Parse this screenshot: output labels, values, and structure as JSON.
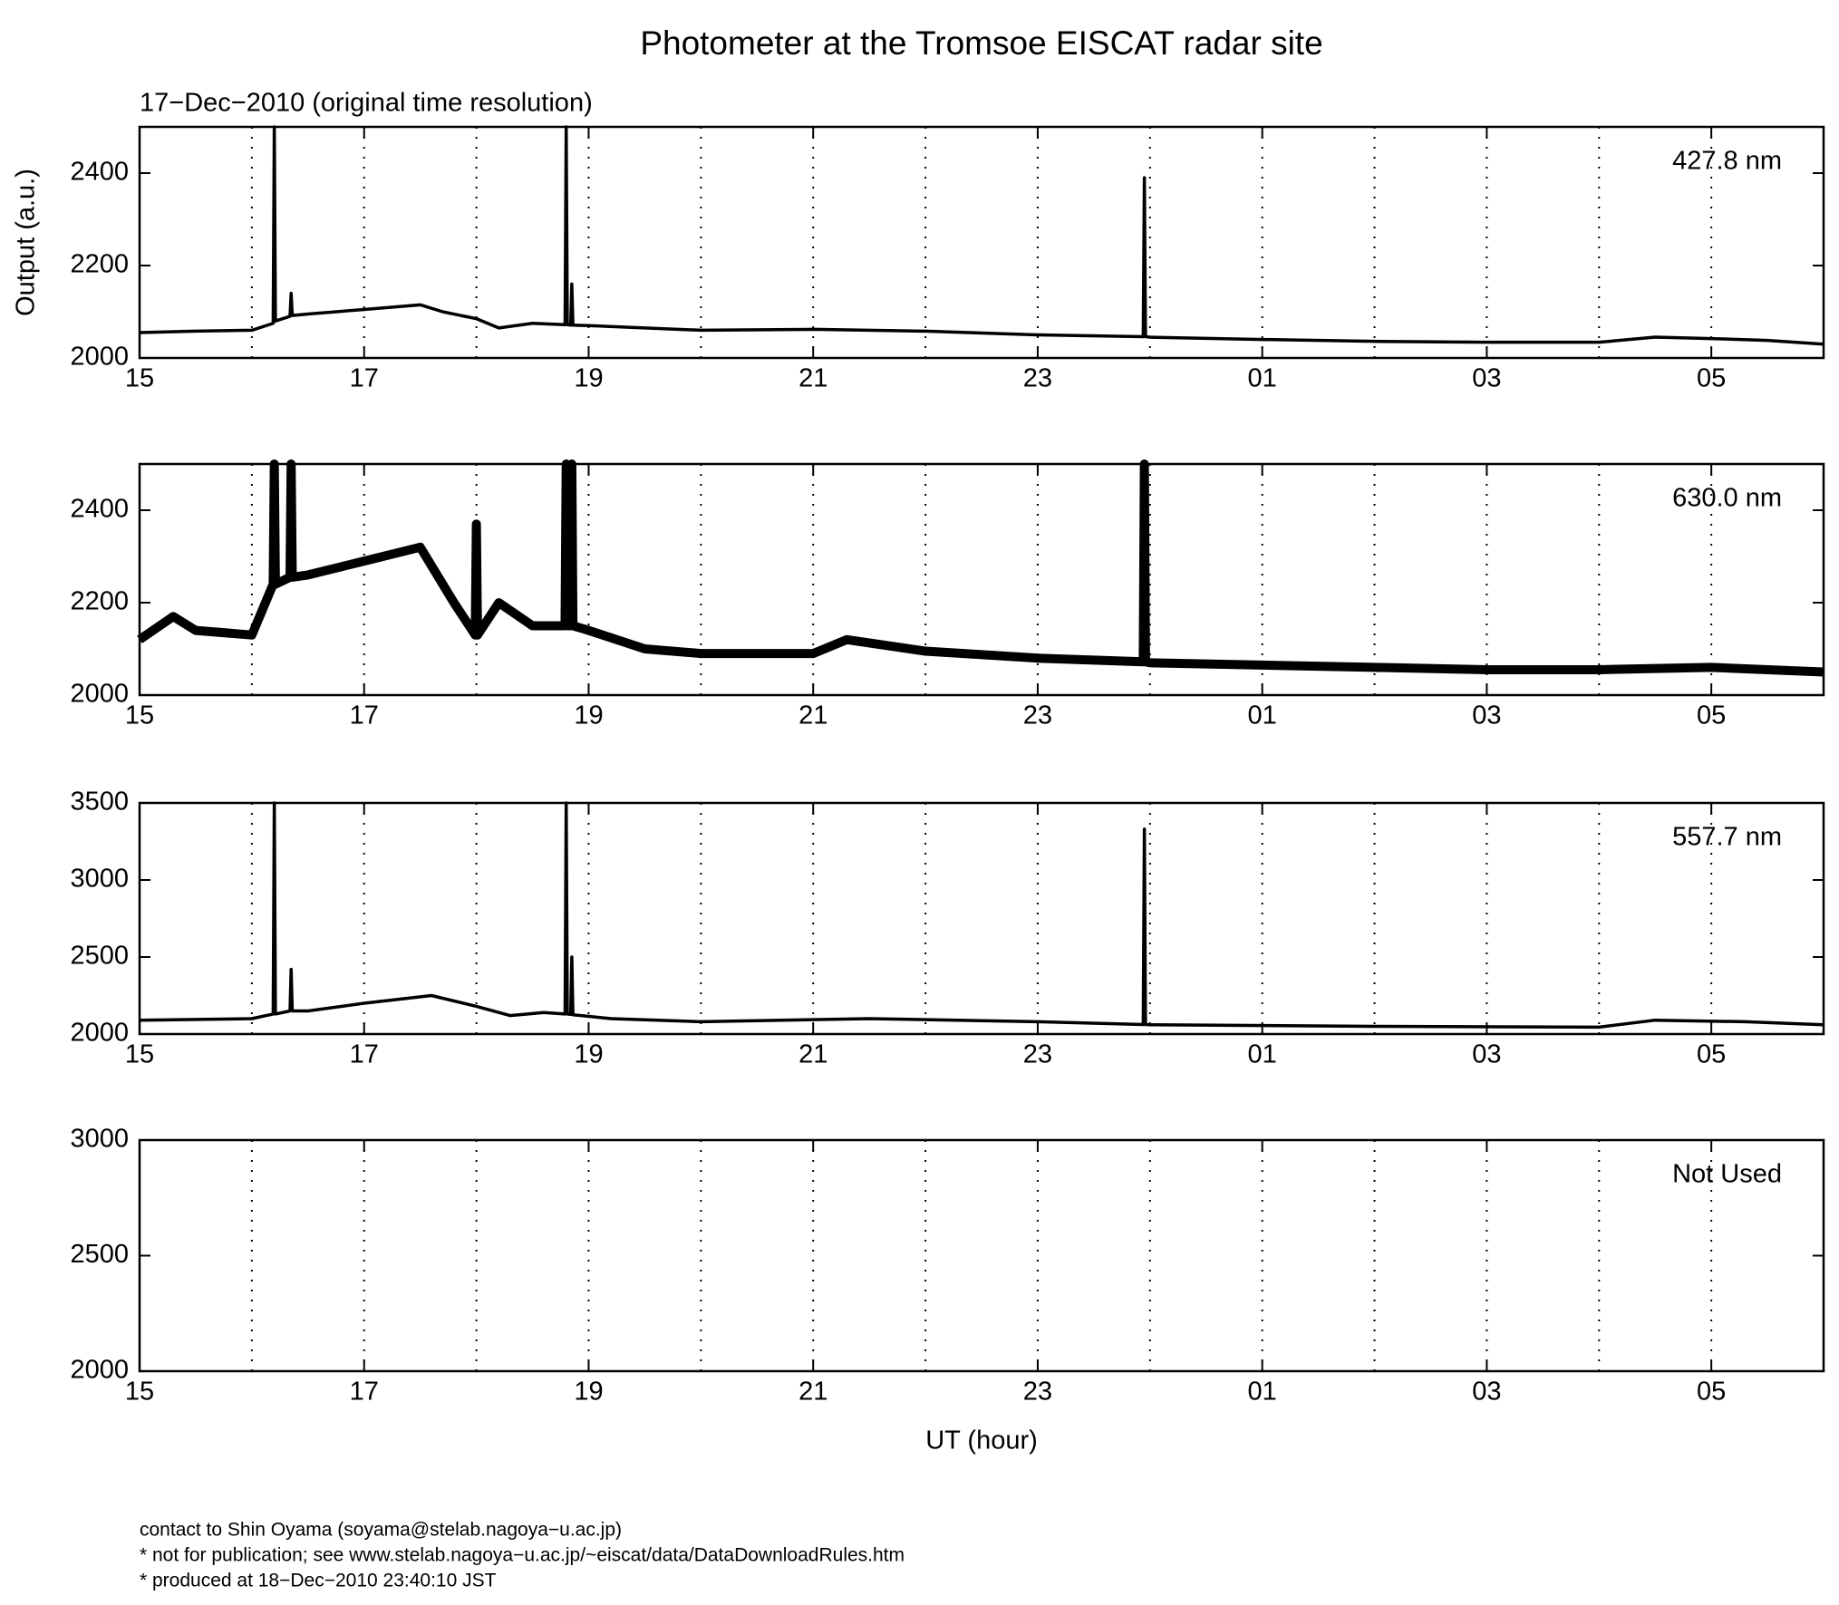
{
  "title": "Photometer at the Tromsoe EISCAT radar site",
  "subtitle": "17−Dec−2010 (original time resolution)",
  "footer": [
    "contact to Shin Oyama (soyama@stelab.nagoya−u.ac.jp)",
    "* not for publication; see www.stelab.nagoya−u.ac.jp/~eiscat/data/DataDownloadRules.htm",
    "* produced at 18−Dec−2010 23:40:10 JST"
  ],
  "chart_data": [
    {
      "type": "line",
      "label": "427.8 nm",
      "ylabel": "Output (a.u.)",
      "xlim": [
        15,
        30
      ],
      "xticks": [
        15,
        17,
        19,
        21,
        23,
        {
          "value": 25,
          "label": "01"
        },
        {
          "value": 27,
          "label": "03"
        },
        {
          "value": 29,
          "label": "05"
        }
      ],
      "xminorticks": [
        16,
        18,
        20,
        22,
        24,
        26,
        28
      ],
      "ylim": [
        2000,
        2500
      ],
      "yticks": [
        2000,
        2200,
        2400
      ],
      "grid": "dotted",
      "series": [
        {
          "color": "#000000",
          "x": [
            15,
            15.5,
            16,
            16.19,
            16.2,
            16.21,
            16.34,
            16.35,
            16.36,
            16.5,
            17,
            17.5,
            17.7,
            18,
            18.2,
            18.5,
            18.79,
            18.8,
            18.81,
            18.84,
            18.85,
            18.86,
            19,
            19.5,
            20,
            21,
            22,
            23,
            23.94,
            23.95,
            23.96,
            24,
            25,
            26,
            27,
            28,
            28.5,
            29,
            29.5,
            30
          ],
          "values": [
            2055,
            2058,
            2060,
            2075,
            2500,
            2080,
            2090,
            2140,
            2092,
            2095,
            2105,
            2115,
            2100,
            2085,
            2065,
            2075,
            2072,
            2500,
            2072,
            2071,
            2160,
            2071,
            2070,
            2065,
            2060,
            2062,
            2058,
            2050,
            2046,
            2390,
            2046,
            2045,
            2040,
            2036,
            2034,
            2034,
            2045,
            2042,
            2038,
            2030
          ]
        }
      ]
    },
    {
      "type": "line",
      "label": "630.0 nm",
      "xlim": [
        15,
        30
      ],
      "xticks": [
        15,
        17,
        19,
        21,
        23,
        {
          "value": 25,
          "label": "01"
        },
        {
          "value": 27,
          "label": "03"
        },
        {
          "value": 29,
          "label": "05"
        }
      ],
      "xminorticks": [
        16,
        18,
        20,
        22,
        24,
        26,
        28
      ],
      "ylim": [
        2000,
        2500
      ],
      "yticks": [
        2000,
        2200,
        2400
      ],
      "grid": "dotted",
      "series": [
        {
          "color": "#000000",
          "x": [
            15,
            15.3,
            15.5,
            16,
            16.19,
            16.2,
            16.21,
            16.34,
            16.35,
            16.36,
            16.5,
            17,
            17.5,
            17.8,
            17.99,
            18,
            18.01,
            18.2,
            18.5,
            18.79,
            18.8,
            18.81,
            18.84,
            18.85,
            18.86,
            19,
            19.5,
            20,
            21,
            21.3,
            22,
            23,
            23.94,
            23.95,
            23.96,
            24,
            25,
            26,
            27,
            28,
            29,
            30
          ],
          "values": [
            2120,
            2170,
            2140,
            2130,
            2240,
            2500,
            2240,
            2255,
            2500,
            2255,
            2260,
            2290,
            2320,
            2200,
            2130,
            2370,
            2130,
            2200,
            2150,
            2150,
            2500,
            2150,
            2150,
            2500,
            2150,
            2140,
            2100,
            2090,
            2090,
            2120,
            2095,
            2080,
            2072,
            2500,
            2072,
            2070,
            2065,
            2060,
            2055,
            2055,
            2060,
            2050
          ]
        }
      ]
    },
    {
      "type": "line",
      "label": "557.7 nm",
      "xlim": [
        15,
        30
      ],
      "xticks": [
        15,
        17,
        19,
        21,
        23,
        {
          "value": 25,
          "label": "01"
        },
        {
          "value": 27,
          "label": "03"
        },
        {
          "value": 29,
          "label": "05"
        }
      ],
      "xminorticks": [
        16,
        18,
        20,
        22,
        24,
        26,
        28
      ],
      "ylim": [
        2000,
        3500
      ],
      "yticks": [
        2000,
        2500,
        3000,
        3500
      ],
      "grid": "dotted",
      "series": [
        {
          "color": "#000000",
          "x": [
            15,
            16,
            16.19,
            16.2,
            16.21,
            16.34,
            16.35,
            16.36,
            16.5,
            17,
            17.6,
            18,
            18.3,
            18.6,
            18.79,
            18.8,
            18.81,
            18.84,
            18.85,
            18.86,
            19.2,
            20,
            21.5,
            23,
            23.94,
            23.95,
            23.96,
            24,
            26,
            28,
            28.5,
            29.3,
            30
          ],
          "values": [
            2090,
            2100,
            2130,
            3500,
            2130,
            2150,
            2420,
            2150,
            2150,
            2200,
            2250,
            2180,
            2120,
            2140,
            2130,
            3500,
            2130,
            2128,
            2500,
            2125,
            2100,
            2080,
            2100,
            2080,
            2062,
            3330,
            2062,
            2060,
            2050,
            2045,
            2090,
            2080,
            2060
          ]
        }
      ]
    },
    {
      "type": "line",
      "label": "Not Used",
      "xlabel": "UT (hour)",
      "xlim": [
        15,
        30
      ],
      "xticks": [
        15,
        17,
        19,
        21,
        23,
        {
          "value": 25,
          "label": "01"
        },
        {
          "value": 27,
          "label": "03"
        },
        {
          "value": 29,
          "label": "05"
        }
      ],
      "xminorticks": [
        16,
        18,
        20,
        22,
        24,
        26,
        28
      ],
      "ylim": [
        2000,
        3000
      ],
      "yticks": [
        2000,
        2500,
        3000
      ],
      "grid": "dotted"
    }
  ]
}
